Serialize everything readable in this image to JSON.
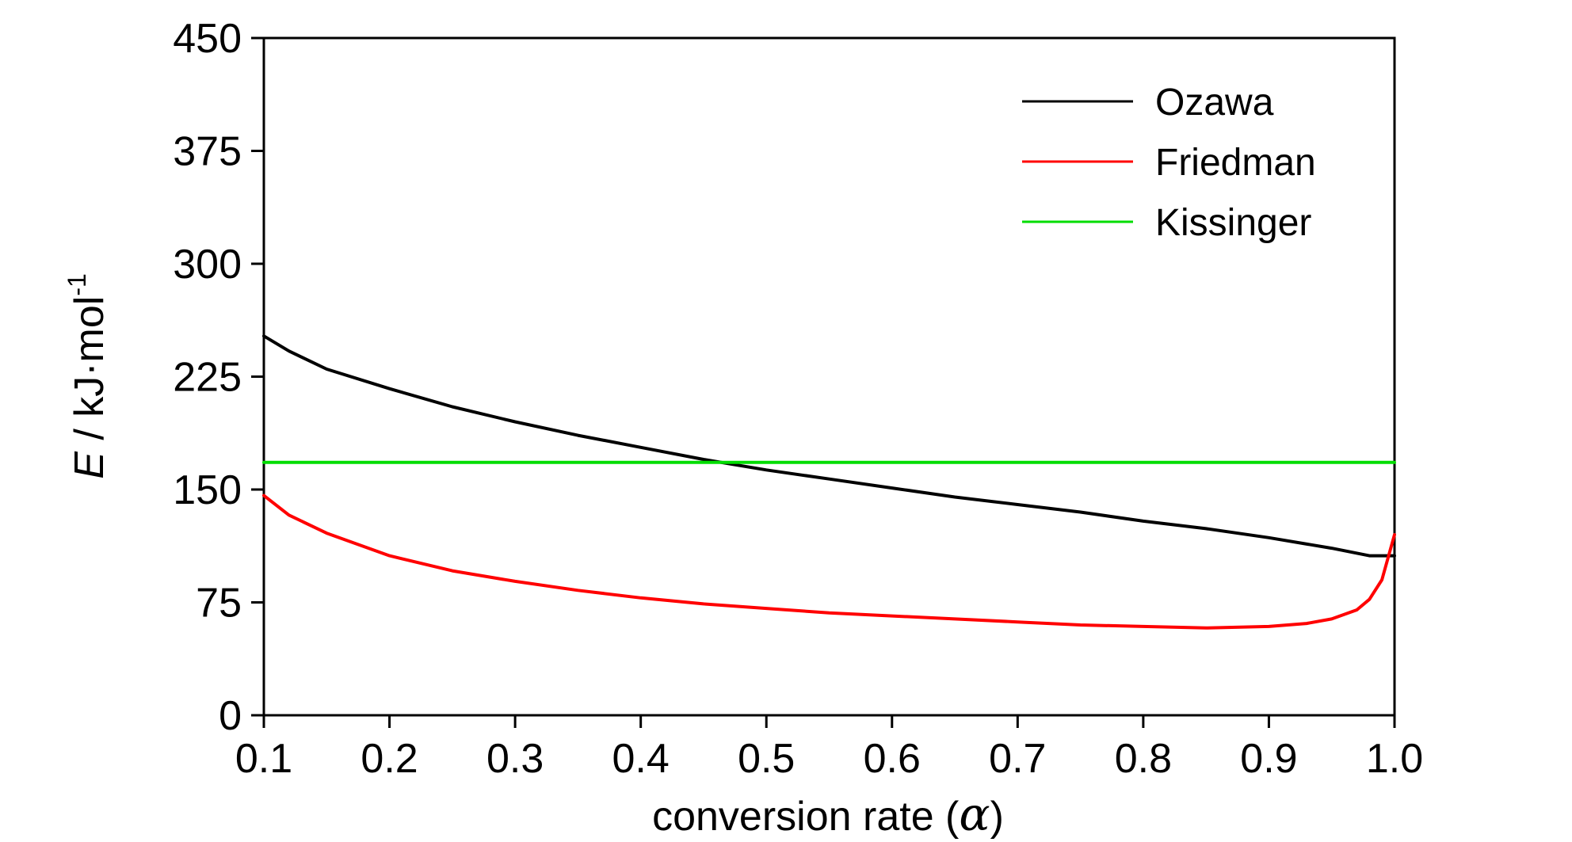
{
  "chart_data": {
    "type": "line",
    "xlabel_parts": [
      "conversion rate (",
      "α",
      ")"
    ],
    "ylabel_parts": [
      "E",
      " / kJ·mol",
      "-1"
    ],
    "xlim": [
      0.1,
      1.0
    ],
    "ylim": [
      0,
      450
    ],
    "xticks": [
      "0.1",
      "0.2",
      "0.3",
      "0.4",
      "0.5",
      "0.6",
      "0.7",
      "0.8",
      "0.9",
      "1.0"
    ],
    "yticks": [
      "0",
      "75",
      "150",
      "225",
      "300",
      "375",
      "450"
    ],
    "grid": false,
    "legend_position": "top-right",
    "series": [
      {
        "name": "Ozawa",
        "color": "#000000",
        "x": [
          0.1,
          0.12,
          0.15,
          0.2,
          0.25,
          0.3,
          0.35,
          0.4,
          0.45,
          0.5,
          0.55,
          0.6,
          0.65,
          0.7,
          0.75,
          0.8,
          0.85,
          0.9,
          0.95,
          0.98,
          1.0
        ],
        "y": [
          252,
          242,
          230,
          217,
          205,
          195,
          186,
          178,
          170,
          163,
          157,
          151,
          145,
          140,
          135,
          129,
          124,
          118,
          111,
          106,
          106
        ]
      },
      {
        "name": "Friedman",
        "color": "#ff0000",
        "x": [
          0.1,
          0.12,
          0.15,
          0.2,
          0.25,
          0.3,
          0.35,
          0.4,
          0.45,
          0.5,
          0.55,
          0.6,
          0.65,
          0.7,
          0.75,
          0.8,
          0.85,
          0.9,
          0.93,
          0.95,
          0.97,
          0.98,
          0.99,
          1.0
        ],
        "y": [
          146,
          133,
          121,
          106,
          96,
          89,
          83,
          78,
          74,
          71,
          68,
          66,
          64,
          62,
          60,
          59,
          58,
          59,
          61,
          64,
          70,
          77,
          90,
          120
        ]
      },
      {
        "name": "Kissinger",
        "color": "#00dd00",
        "x": [
          0.1,
          1.0
        ],
        "y": [
          168,
          168
        ]
      }
    ]
  }
}
